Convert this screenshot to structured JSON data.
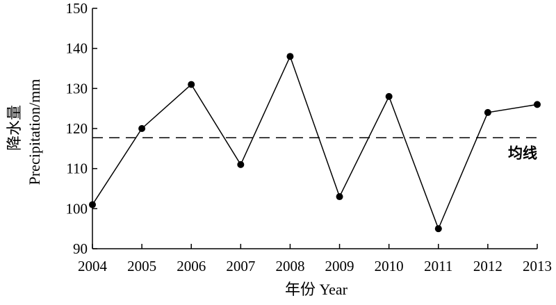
{
  "chart_data": {
    "type": "line",
    "x": [
      2004,
      2005,
      2006,
      2007,
      2008,
      2009,
      2010,
      2011,
      2012,
      2013
    ],
    "series": [
      {
        "values": [
          101,
          120,
          131,
          111,
          138,
          103,
          128,
          95,
          124,
          126
        ]
      }
    ],
    "mean_line": {
      "label": "均线",
      "value": 117.7,
      "style": "dashed"
    },
    "xlabel": "年份 Year",
    "ylabel_line1": "降水量",
    "ylabel_line2": "Precipitation/mm",
    "xlim": [
      2004,
      2013
    ],
    "ylim": [
      90,
      150
    ],
    "yticks": [
      90,
      100,
      110,
      120,
      130,
      140,
      150
    ],
    "xticks": [
      2004,
      2005,
      2006,
      2007,
      2008,
      2009,
      2010,
      2011,
      2012,
      2013
    ],
    "grid": false,
    "legend": "none",
    "colors": {
      "line": "#000000",
      "marker": "#000000",
      "axis": "#000000"
    }
  }
}
